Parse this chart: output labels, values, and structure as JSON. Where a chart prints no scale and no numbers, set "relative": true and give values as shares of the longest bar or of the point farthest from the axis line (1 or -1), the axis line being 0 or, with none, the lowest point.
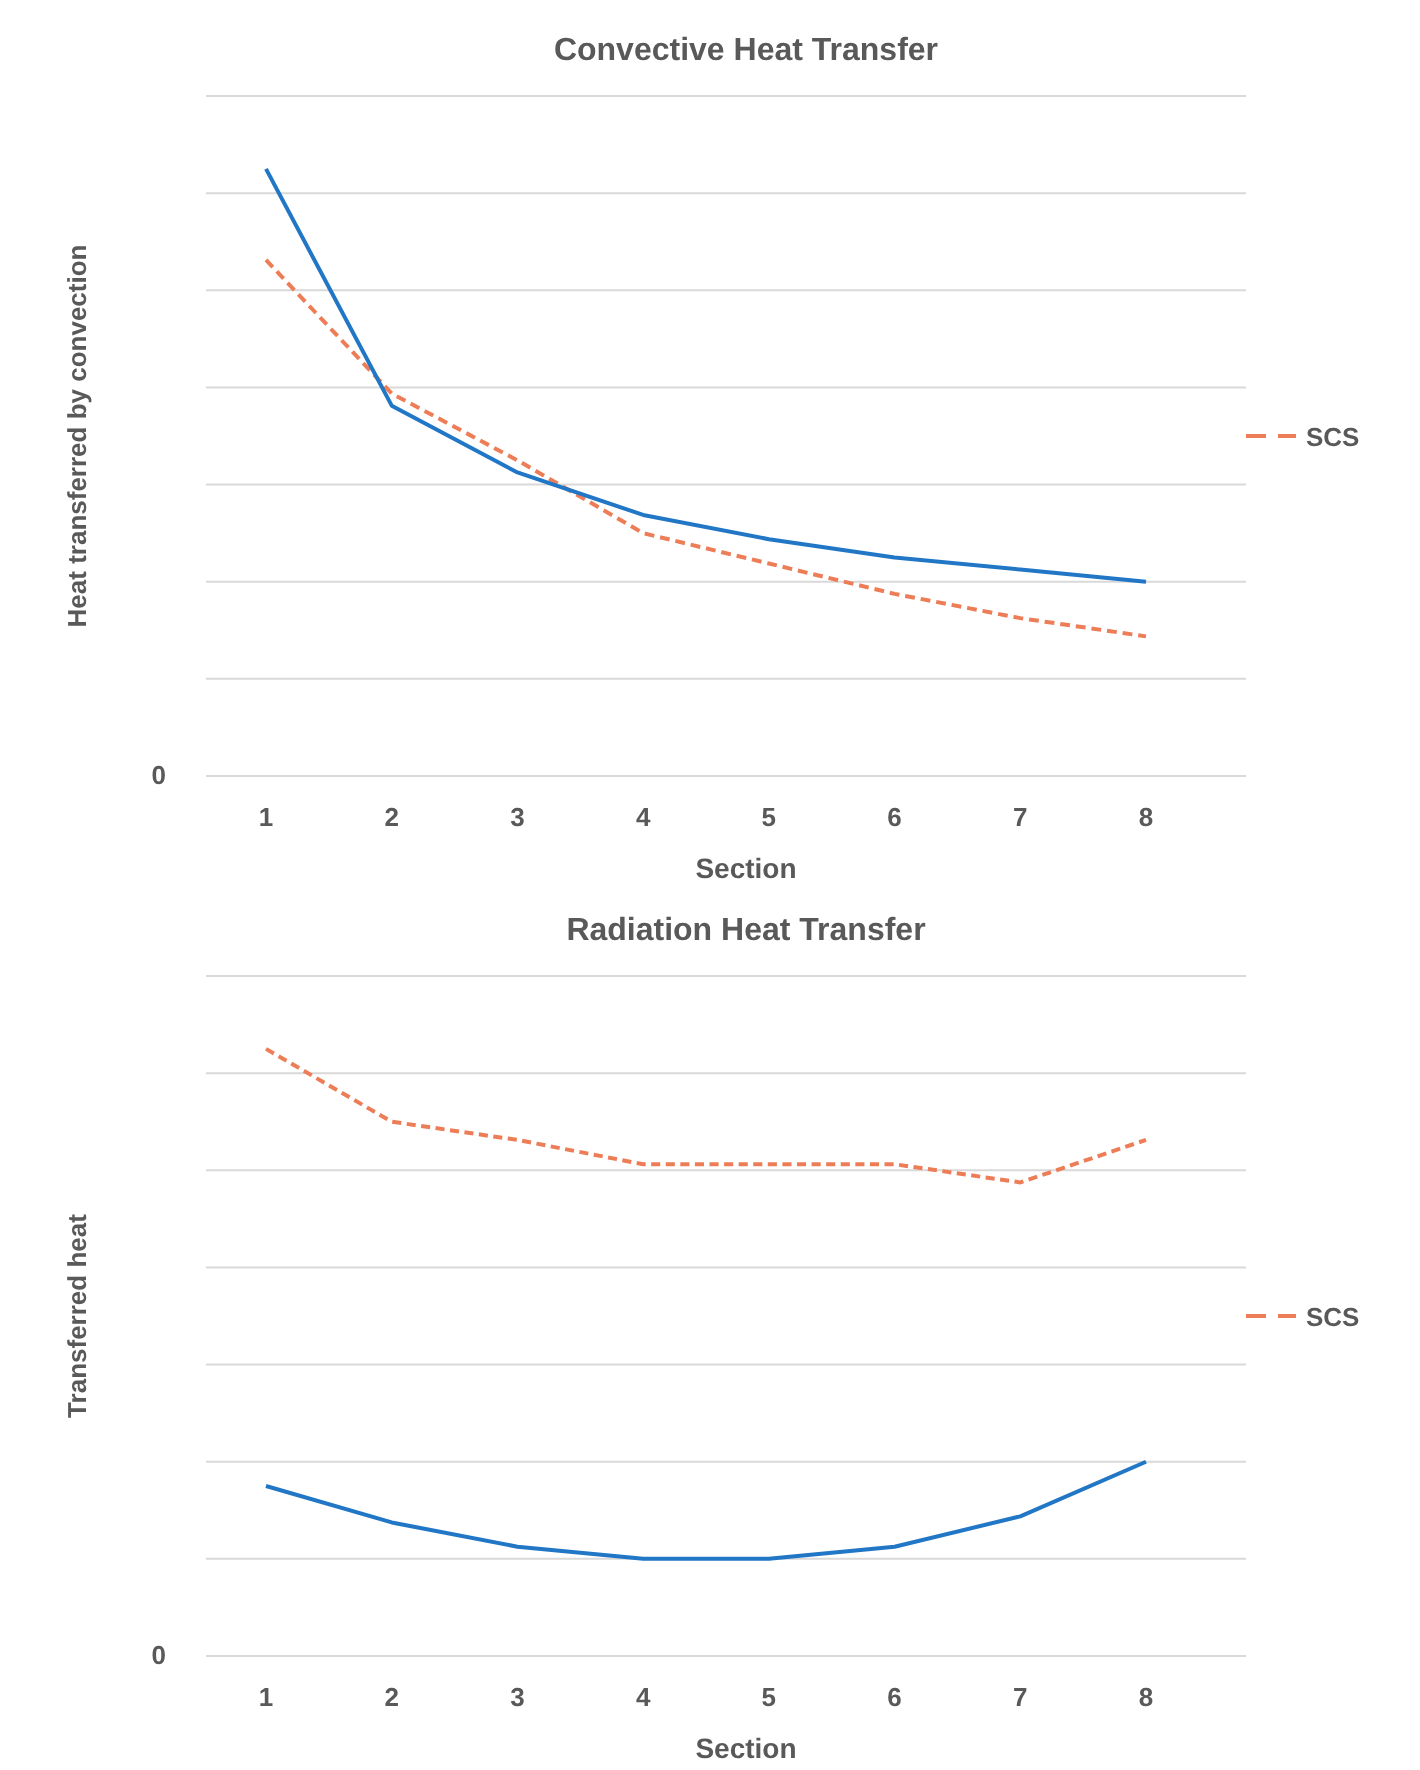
{
  "chart_data": [
    {
      "type": "line",
      "title": "Convective Heat Transfer",
      "xlabel": "Section",
      "ylabel": "Heat transferred by convection",
      "relative": true,
      "categories": [
        "1",
        "2",
        "3",
        "4",
        "5",
        "6",
        "7",
        "8"
      ],
      "series": [
        {
          "name": "SCS",
          "color": "#ed7d57",
          "line_style": "dashed",
          "values": [
            0.85,
            0.63,
            0.52,
            0.4,
            0.35,
            0.3,
            0.26,
            0.23
          ]
        },
        {
          "color": "#2177c6",
          "line_style": "solid",
          "values": [
            1,
            0.61,
            0.5,
            0.43,
            0.39,
            0.36,
            0.34,
            0.32
          ]
        }
      ],
      "annotations": [
        "0"
      ],
      "grid": "y",
      "legend": "right"
    },
    {
      "type": "line",
      "title": "Radiation Heat Transfer",
      "xlabel": "Section",
      "ylabel": "Transferred heat",
      "relative": true,
      "categories": [
        "1",
        "2",
        "3",
        "4",
        "5",
        "6",
        "7",
        "8"
      ],
      "series": [
        {
          "name": "SCS",
          "color": "#ed7d57",
          "line_style": "dashed",
          "values": [
            1,
            0.88,
            0.85,
            0.81,
            0.81,
            0.81,
            0.78,
            0.85
          ]
        },
        {
          "color": "#2177c6",
          "line_style": "solid",
          "values": [
            0.28,
            0.22,
            0.18,
            0.16,
            0.16,
            0.18,
            0.23,
            0.32
          ]
        }
      ],
      "annotations": [
        "0"
      ],
      "grid": "y",
      "legend": "right"
    }
  ]
}
